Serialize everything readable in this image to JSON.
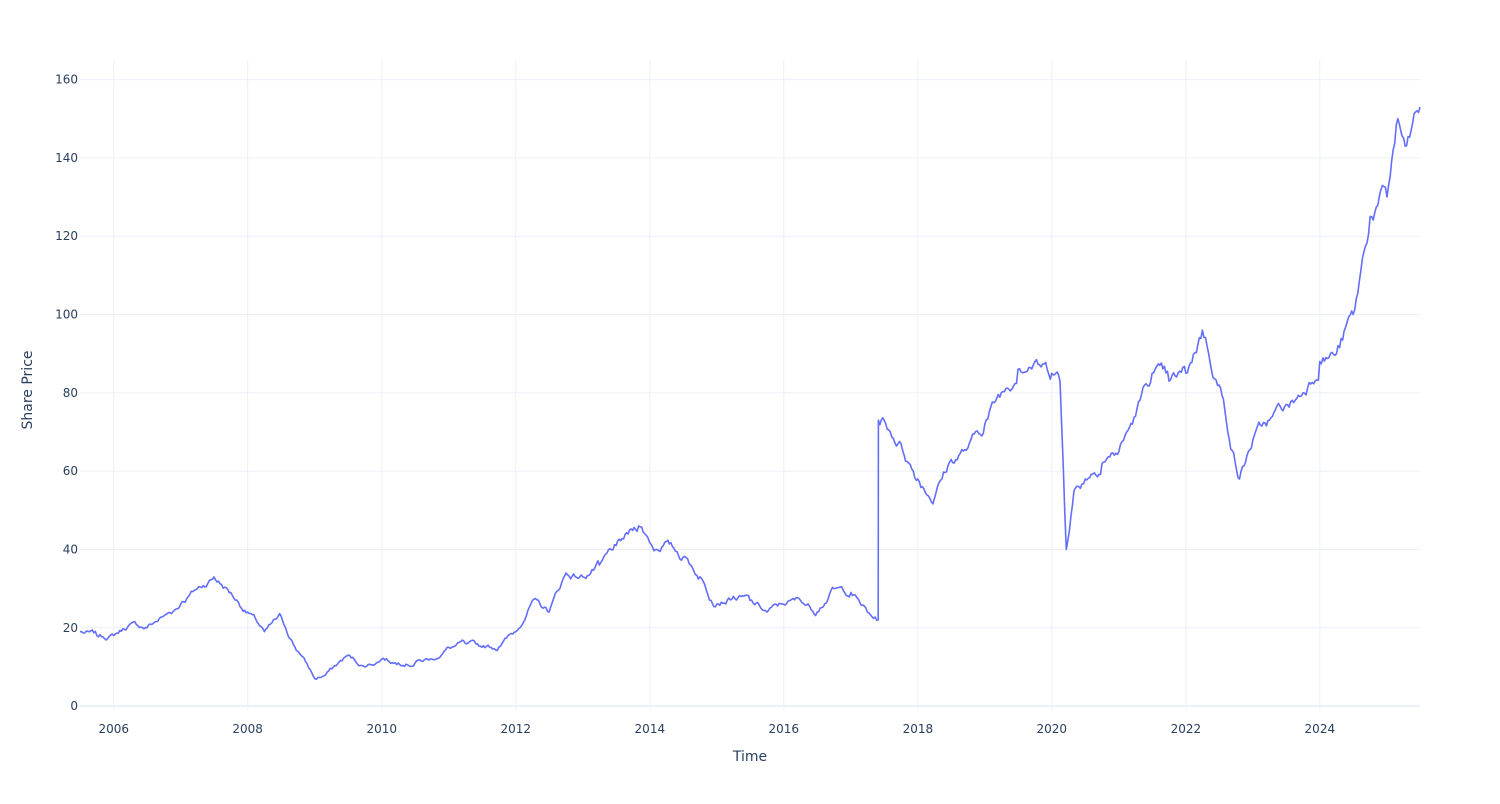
{
  "chart_data": {
    "type": "line",
    "title": "",
    "xlabel": "Time",
    "ylabel": "Share Price",
    "xlim": [
      "2005-07-01",
      "2025-06-30"
    ],
    "ylim": [
      -1,
      165
    ],
    "x_ticks": [
      "2006",
      "2008",
      "2010",
      "2012",
      "2014",
      "2016",
      "2018",
      "2020",
      "2022",
      "2024"
    ],
    "y_ticks": [
      0,
      20,
      40,
      60,
      80,
      100,
      120,
      140,
      160
    ],
    "grid": true,
    "legend": "none",
    "line_color": "#636efa",
    "series": [
      {
        "x": [
          "2005-07-01",
          "2005-10-01",
          "2006-01-01",
          "2006-04-01",
          "2006-07-01",
          "2006-10-01",
          "2007-01-01",
          "2007-04-01",
          "2007-07-01",
          "2007-10-01",
          "2008-01-01",
          "2008-04-01",
          "2008-07-01",
          "2008-10-01",
          "2009-01-01",
          "2009-03-01",
          "2009-07-01",
          "2009-10-01",
          "2010-01-01",
          "2010-04-01",
          "2010-07-01",
          "2010-10-01",
          "2011-01-01",
          "2011-04-01",
          "2011-07-01",
          "2011-10-01",
          "2012-01-01",
          "2012-04-01",
          "2012-07-01",
          "2012-10-01",
          "2013-01-01",
          "2013-04-01",
          "2013-07-01",
          "2013-11-01",
          "2014-02-01",
          "2014-04-01",
          "2014-07-01",
          "2014-10-01",
          "2014-12-01",
          "2015-01-01",
          "2015-04-01",
          "2015-07-01",
          "2015-10-01",
          "2016-01-01",
          "2016-04-01",
          "2016-07-01",
          "2016-10-01",
          "2017-01-01",
          "2017-04-01",
          "2017-05-30",
          "2017-05-31",
          "2017-07-01",
          "2017-10-01",
          "2018-01-01",
          "2018-04-01",
          "2018-07-01",
          "2018-10-01",
          "2019-01-01",
          "2019-04-01",
          "2019-07-01",
          "2019-10-01",
          "2020-01-01",
          "2020-02-15",
          "2020-03-20",
          "2020-05-01",
          "2020-07-01",
          "2020-10-01",
          "2021-01-01",
          "2021-04-01",
          "2021-07-01",
          "2021-10-01",
          "2022-01-01",
          "2022-04-01",
          "2022-07-01",
          "2022-10-20",
          "2023-01-01",
          "2023-04-01",
          "2023-07-01",
          "2023-10-01",
          "2024-01-01",
          "2024-04-01",
          "2024-07-01",
          "2024-10-01",
          "2025-01-01",
          "2025-03-01",
          "2025-04-10",
          "2025-06-30"
        ],
        "values": [
          19,
          18,
          18,
          21,
          20,
          23,
          26,
          30,
          33,
          29,
          24,
          19,
          23,
          14,
          7,
          8,
          13,
          10,
          12,
          11,
          11,
          12,
          15,
          16,
          15,
          15,
          19,
          27,
          24,
          34,
          33,
          36,
          41,
          46,
          40,
          42,
          38,
          33,
          27,
          26,
          28,
          27,
          24,
          26,
          27,
          24,
          30,
          29,
          24,
          22,
          73,
          73,
          67,
          58,
          53,
          63,
          66,
          72,
          80,
          86,
          88,
          85,
          83,
          40,
          55,
          58,
          62,
          65,
          74,
          85,
          83,
          85,
          96,
          82,
          58,
          68,
          73,
          77,
          80,
          88,
          90,
          100,
          125,
          130,
          150,
          143,
          153
        ]
      }
    ]
  }
}
